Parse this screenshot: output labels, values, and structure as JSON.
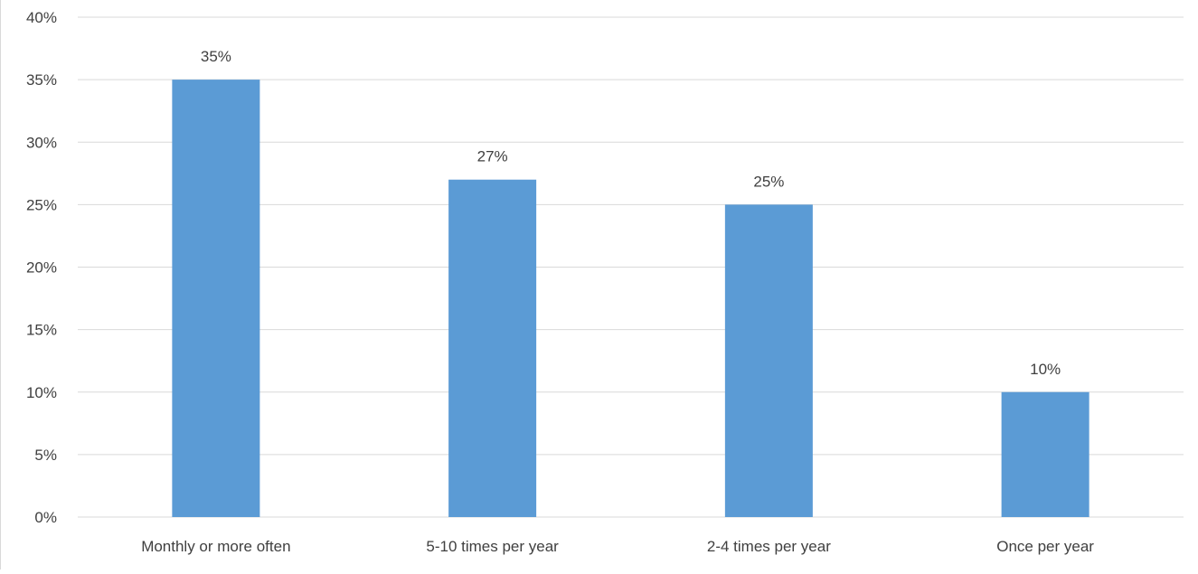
{
  "chart_data": {
    "type": "bar",
    "categories": [
      "Monthly or more often",
      "5-10 times per year",
      "2-4 times per year",
      "Once per year"
    ],
    "values": [
      35,
      27,
      25,
      10
    ],
    "data_labels": [
      "35%",
      "27%",
      "25%",
      "10%"
    ],
    "ylim": [
      0,
      40
    ],
    "yticks": [
      0,
      5,
      10,
      15,
      20,
      25,
      30,
      35,
      40
    ],
    "ytick_labels": [
      "0%",
      "5%",
      "10%",
      "15%",
      "20%",
      "25%",
      "30%",
      "35%",
      "40%"
    ],
    "grid": true,
    "bar_color": "#5b9bd5",
    "gridline_color": "#d9d9d9"
  }
}
